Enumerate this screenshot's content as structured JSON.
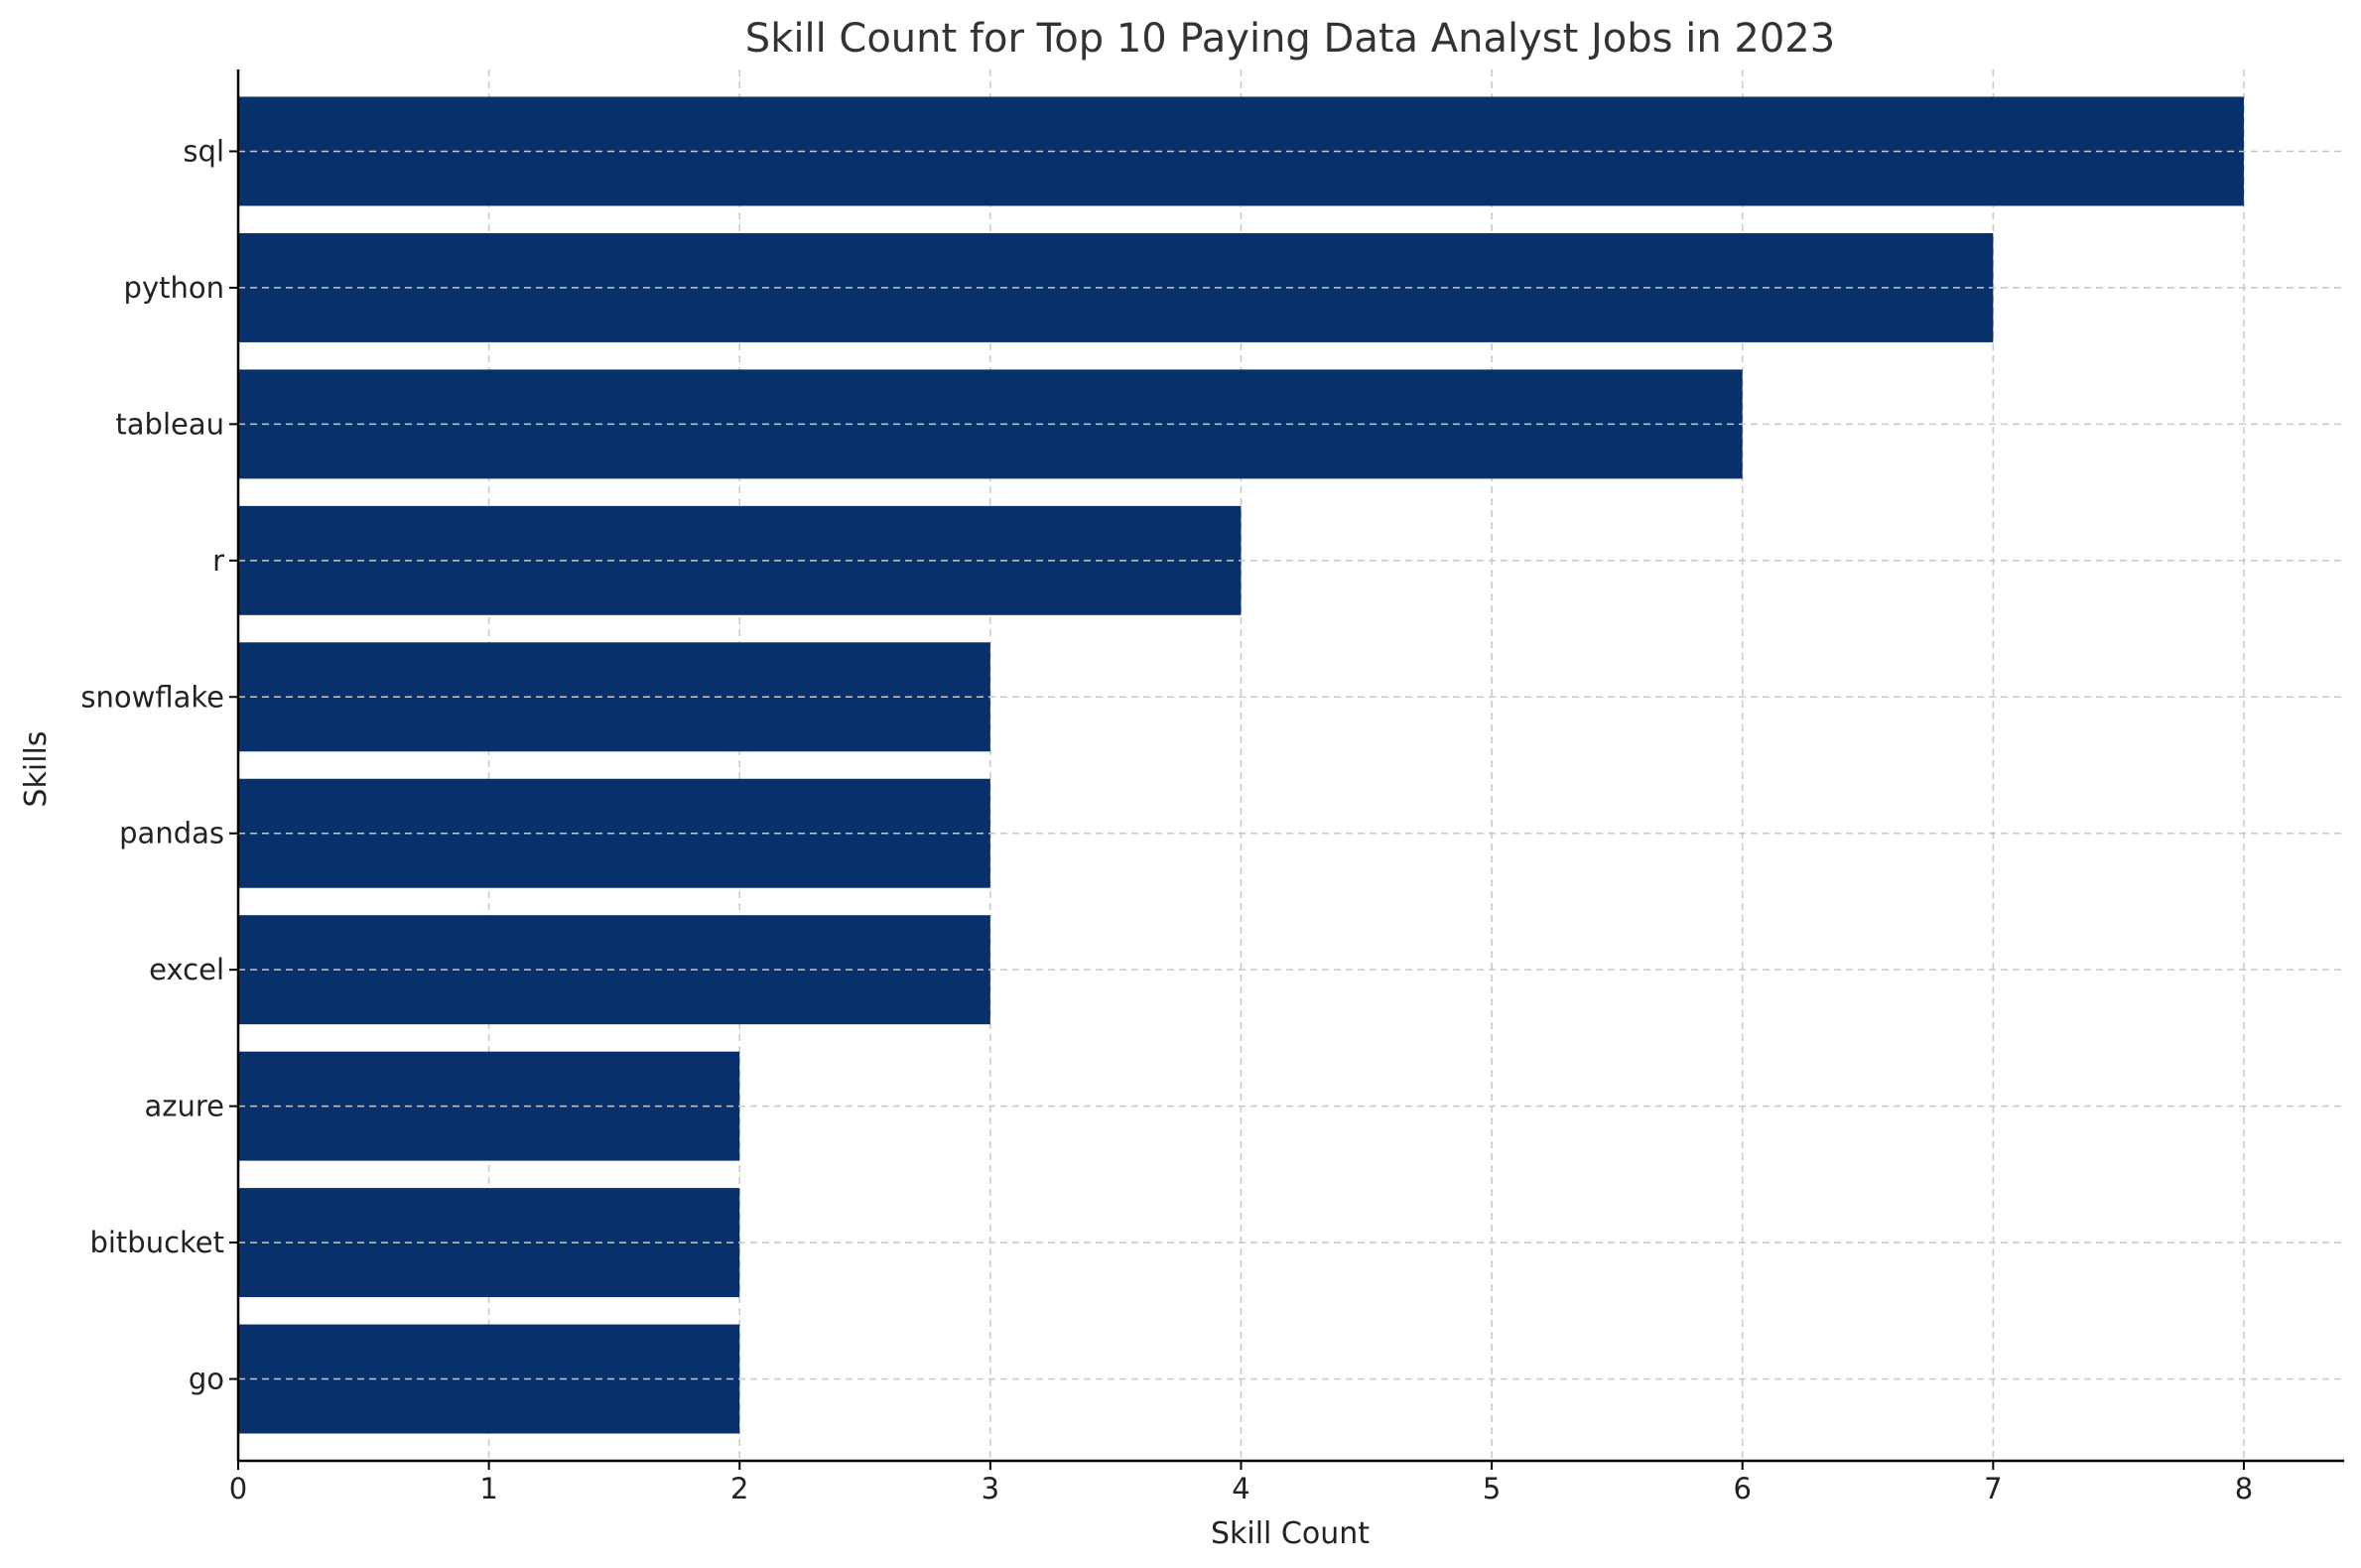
{
  "chart_data": {
    "type": "bar",
    "orientation": "horizontal",
    "title": "Skill Count for Top 10 Paying Data Analyst Jobs in 2023",
    "xlabel": "Skill Count",
    "ylabel": "Skills",
    "categories": [
      "sql",
      "python",
      "tableau",
      "r",
      "snowflake",
      "pandas",
      "excel",
      "azure",
      "bitbucket",
      "go"
    ],
    "values": [
      8,
      7,
      6,
      4,
      3,
      3,
      3,
      2,
      2,
      2
    ],
    "xlim": [
      0,
      8.4
    ],
    "xticks": [
      0,
      1,
      2,
      3,
      4,
      5,
      6,
      7,
      8
    ],
    "grid": true,
    "bar_color": "#08306b",
    "grid_color": "#c8c8c8"
  }
}
